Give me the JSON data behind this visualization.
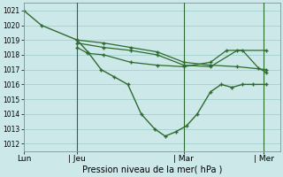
{
  "background_color": "#cce8e8",
  "grid_color": "#99cccc",
  "line_color": "#2d6a2d",
  "xlabel": "Pression niveau de la mer( hPa )",
  "ylim": [
    1011.5,
    1021.5
  ],
  "yticks": [
    1012,
    1013,
    1014,
    1015,
    1016,
    1017,
    1018,
    1019,
    1020,
    1021
  ],
  "xtick_labels": [
    "Lun",
    "| Jeu",
    "| Mar",
    "| Mer"
  ],
  "xtick_positions": [
    0,
    1,
    3,
    4.5
  ],
  "series1_x": [
    0,
    0.33,
    1.0,
    1.2,
    1.45,
    1.7,
    1.95,
    2.2,
    2.45,
    2.65,
    2.85,
    3.05,
    3.25,
    3.5,
    3.7,
    3.9,
    4.1,
    4.3,
    4.55
  ],
  "series1_y": [
    1021,
    1020,
    1019,
    1018.2,
    1017,
    1016.5,
    1016,
    1014,
    1013,
    1012.5,
    1012.8,
    1013.2,
    1014,
    1015.5,
    1016,
    1015.8,
    1016,
    1016,
    1016
  ],
  "series2_x": [
    1.0,
    1.5,
    2.0,
    2.5,
    3.0,
    3.5,
    4.0,
    4.55
  ],
  "series2_y": [
    1019,
    1018.8,
    1018.5,
    1018.2,
    1017.5,
    1017.3,
    1017.2,
    1017.0
  ],
  "series3_x": [
    1.0,
    1.5,
    2.0,
    2.5,
    3.0,
    3.5,
    4.0,
    4.55
  ],
  "series3_y": [
    1018.8,
    1018.5,
    1018.3,
    1018.0,
    1017.3,
    1017.2,
    1018.3,
    1018.3
  ],
  "series4_x": [
    1.0,
    1.2,
    1.5,
    2.0,
    2.5,
    3.0,
    3.5,
    3.8,
    4.1,
    4.4,
    4.55
  ],
  "series4_y": [
    1018.5,
    1018.1,
    1018.0,
    1017.5,
    1017.3,
    1017.2,
    1017.5,
    1018.3,
    1018.3,
    1017.1,
    1016.8
  ],
  "vlines": [
    1.0,
    3.0,
    4.5
  ],
  "xlim": [
    0,
    4.8
  ]
}
